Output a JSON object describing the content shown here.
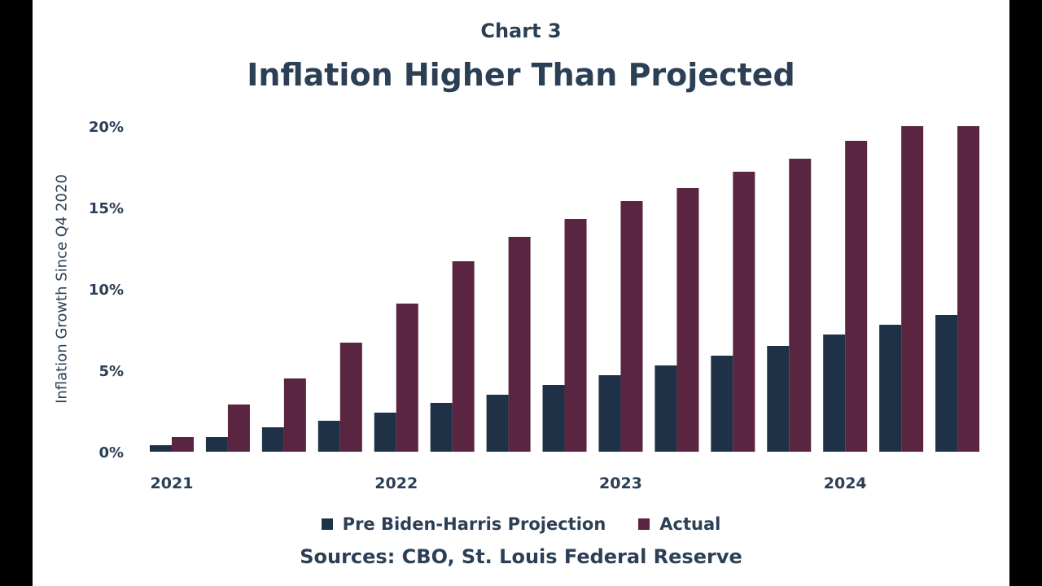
{
  "chart_data": {
    "type": "bar",
    "supertitle": "Chart 3",
    "title": "Inflation Higher Than Projected",
    "ylabel": "Inflation Growth Since Q4 2020",
    "xlabel": "",
    "source": "Sources: CBO, St. Louis Federal Reserve",
    "ylim": [
      0,
      20
    ],
    "yticks": [
      0,
      5,
      10,
      15,
      20
    ],
    "ytick_labels": [
      "0%",
      "5%",
      "10%",
      "15%",
      "20%"
    ],
    "categories": [
      "2021 Q1",
      "2021 Q2",
      "2021 Q3",
      "2021 Q4",
      "2022 Q1",
      "2022 Q2",
      "2022 Q3",
      "2022 Q4",
      "2023 Q1",
      "2023 Q2",
      "2023 Q3",
      "2023 Q4",
      "2024 Q1",
      "2024 Q2",
      "2024 Q3"
    ],
    "xtick_labels": [
      {
        "index": 0,
        "label": "2021"
      },
      {
        "index": 4,
        "label": "2022"
      },
      {
        "index": 8,
        "label": "2023"
      },
      {
        "index": 12,
        "label": "2024"
      }
    ],
    "series": [
      {
        "name": "Pre Biden-Harris Projection",
        "color": "#1e3146",
        "values": [
          0.4,
          0.9,
          1.5,
          1.9,
          2.4,
          3.0,
          3.5,
          4.1,
          4.7,
          5.3,
          5.9,
          6.5,
          7.2,
          7.8,
          8.4
        ]
      },
      {
        "name": "Actual",
        "color": "#5a2540",
        "values": [
          0.9,
          2.9,
          4.5,
          6.7,
          9.1,
          11.7,
          13.2,
          14.3,
          15.4,
          16.2,
          17.2,
          18.0,
          19.1,
          20.0,
          20.0
        ]
      }
    ]
  }
}
